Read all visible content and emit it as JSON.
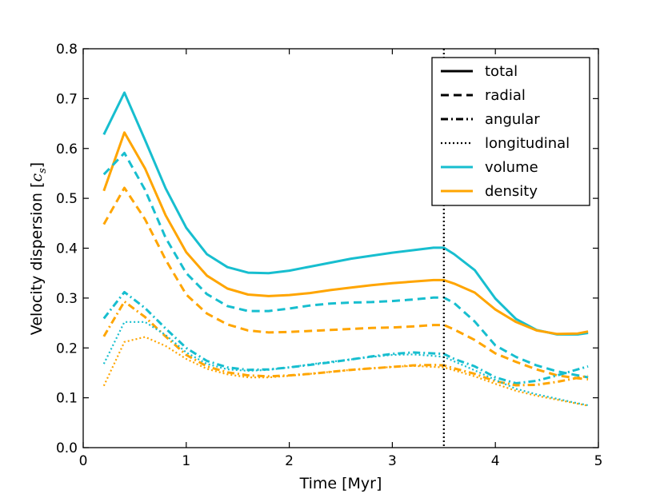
{
  "chart_data": {
    "type": "line",
    "xlabel": "Time [Myr]",
    "ylabel_prefix": "Velocity dispersion [",
    "ylabel_symbol": "c",
    "ylabel_subscript": "s",
    "ylabel_suffix": "]",
    "xlim": [
      0,
      5
    ],
    "ylim": [
      0.0,
      0.8
    ],
    "xticks": [
      0,
      1,
      2,
      3,
      4,
      5
    ],
    "xtick_labels": [
      "0",
      "1",
      "2",
      "3",
      "4",
      "5"
    ],
    "yticks": [
      0.0,
      0.1,
      0.2,
      0.3,
      0.4,
      0.5,
      0.6,
      0.7,
      0.8
    ],
    "ytick_labels": [
      "0.0",
      "0.1",
      "0.2",
      "0.3",
      "0.4",
      "0.5",
      "0.6",
      "0.7",
      "0.8"
    ],
    "grid": false,
    "vline": {
      "x": 3.5,
      "style": "dotted",
      "color": "#000000"
    },
    "colors": {
      "volume": "#17becf",
      "density": "#ffa500"
    },
    "x": [
      0.2,
      0.4,
      0.6,
      0.8,
      1.0,
      1.2,
      1.4,
      1.6,
      1.8,
      2.0,
      2.2,
      2.4,
      2.6,
      2.8,
      3.0,
      3.2,
      3.4,
      3.5,
      3.6,
      3.8,
      4.0,
      4.2,
      4.4,
      4.6,
      4.8,
      4.9
    ],
    "series": [
      {
        "name": "volume total",
        "weighting": "volume",
        "component": "total",
        "style": "solid",
        "values": [
          0.628,
          0.712,
          0.617,
          0.52,
          0.441,
          0.388,
          0.362,
          0.351,
          0.35,
          0.355,
          0.363,
          0.371,
          0.379,
          0.385,
          0.391,
          0.396,
          0.401,
          0.401,
          0.388,
          0.356,
          0.299,
          0.258,
          0.236,
          0.227,
          0.227,
          0.23
        ]
      },
      {
        "name": "density total",
        "weighting": "density",
        "component": "total",
        "style": "solid",
        "values": [
          0.515,
          0.632,
          0.56,
          0.466,
          0.392,
          0.345,
          0.319,
          0.307,
          0.304,
          0.306,
          0.31,
          0.316,
          0.321,
          0.326,
          0.33,
          0.333,
          0.336,
          0.336,
          0.329,
          0.311,
          0.277,
          0.252,
          0.235,
          0.228,
          0.229,
          0.233
        ]
      },
      {
        "name": "volume radial",
        "weighting": "volume",
        "component": "radial",
        "style": "dashed",
        "values": [
          0.548,
          0.591,
          0.517,
          0.421,
          0.35,
          0.308,
          0.284,
          0.274,
          0.274,
          0.279,
          0.285,
          0.289,
          0.291,
          0.292,
          0.294,
          0.297,
          0.301,
          0.301,
          0.29,
          0.253,
          0.205,
          0.182,
          0.165,
          0.153,
          0.145,
          0.141
        ]
      },
      {
        "name": "density radial",
        "weighting": "density",
        "component": "radial",
        "style": "dashed",
        "values": [
          0.448,
          0.521,
          0.458,
          0.377,
          0.307,
          0.269,
          0.247,
          0.235,
          0.231,
          0.232,
          0.234,
          0.236,
          0.238,
          0.24,
          0.241,
          0.243,
          0.246,
          0.246,
          0.237,
          0.216,
          0.189,
          0.172,
          0.157,
          0.145,
          0.139,
          0.137
        ]
      },
      {
        "name": "volume angular",
        "weighting": "volume",
        "component": "angular",
        "style": "dashdot",
        "values": [
          0.259,
          0.312,
          0.28,
          0.239,
          0.2,
          0.174,
          0.161,
          0.156,
          0.157,
          0.161,
          0.166,
          0.171,
          0.177,
          0.183,
          0.188,
          0.191,
          0.189,
          0.188,
          0.178,
          0.163,
          0.141,
          0.129,
          0.134,
          0.145,
          0.157,
          0.163
        ]
      },
      {
        "name": "density angular",
        "weighting": "density",
        "component": "angular",
        "style": "dashdot",
        "values": [
          0.223,
          0.293,
          0.262,
          0.223,
          0.186,
          0.163,
          0.151,
          0.145,
          0.143,
          0.145,
          0.148,
          0.152,
          0.156,
          0.159,
          0.162,
          0.165,
          0.166,
          0.165,
          0.159,
          0.148,
          0.133,
          0.125,
          0.126,
          0.132,
          0.14,
          0.144
        ]
      },
      {
        "name": "volume longitudinal",
        "weighting": "volume",
        "component": "longitudinal",
        "style": "dotted",
        "values": [
          0.168,
          0.252,
          0.252,
          0.226,
          0.191,
          0.168,
          0.157,
          0.154,
          0.156,
          0.161,
          0.167,
          0.172,
          0.177,
          0.182,
          0.186,
          0.187,
          0.184,
          0.182,
          0.173,
          0.155,
          0.136,
          0.118,
          0.107,
          0.098,
          0.089,
          0.085
        ]
      },
      {
        "name": "density longitudinal",
        "weighting": "density",
        "component": "longitudinal",
        "style": "dotted",
        "values": [
          0.124,
          0.212,
          0.222,
          0.204,
          0.178,
          0.158,
          0.147,
          0.141,
          0.141,
          0.144,
          0.148,
          0.152,
          0.156,
          0.159,
          0.162,
          0.164,
          0.162,
          0.161,
          0.155,
          0.143,
          0.128,
          0.114,
          0.104,
          0.096,
          0.088,
          0.084
        ]
      }
    ],
    "legend": {
      "position": "top-right",
      "entries": [
        {
          "label": "total",
          "style": "solid",
          "color": "#000000"
        },
        {
          "label": "radial",
          "style": "dashed",
          "color": "#000000"
        },
        {
          "label": "angular",
          "style": "dashdot",
          "color": "#000000"
        },
        {
          "label": "longitudinal",
          "style": "dotted",
          "color": "#000000"
        },
        {
          "label": "volume",
          "style": "solid",
          "color": "#17becf"
        },
        {
          "label": "density",
          "style": "solid",
          "color": "#ffa500"
        }
      ]
    }
  }
}
